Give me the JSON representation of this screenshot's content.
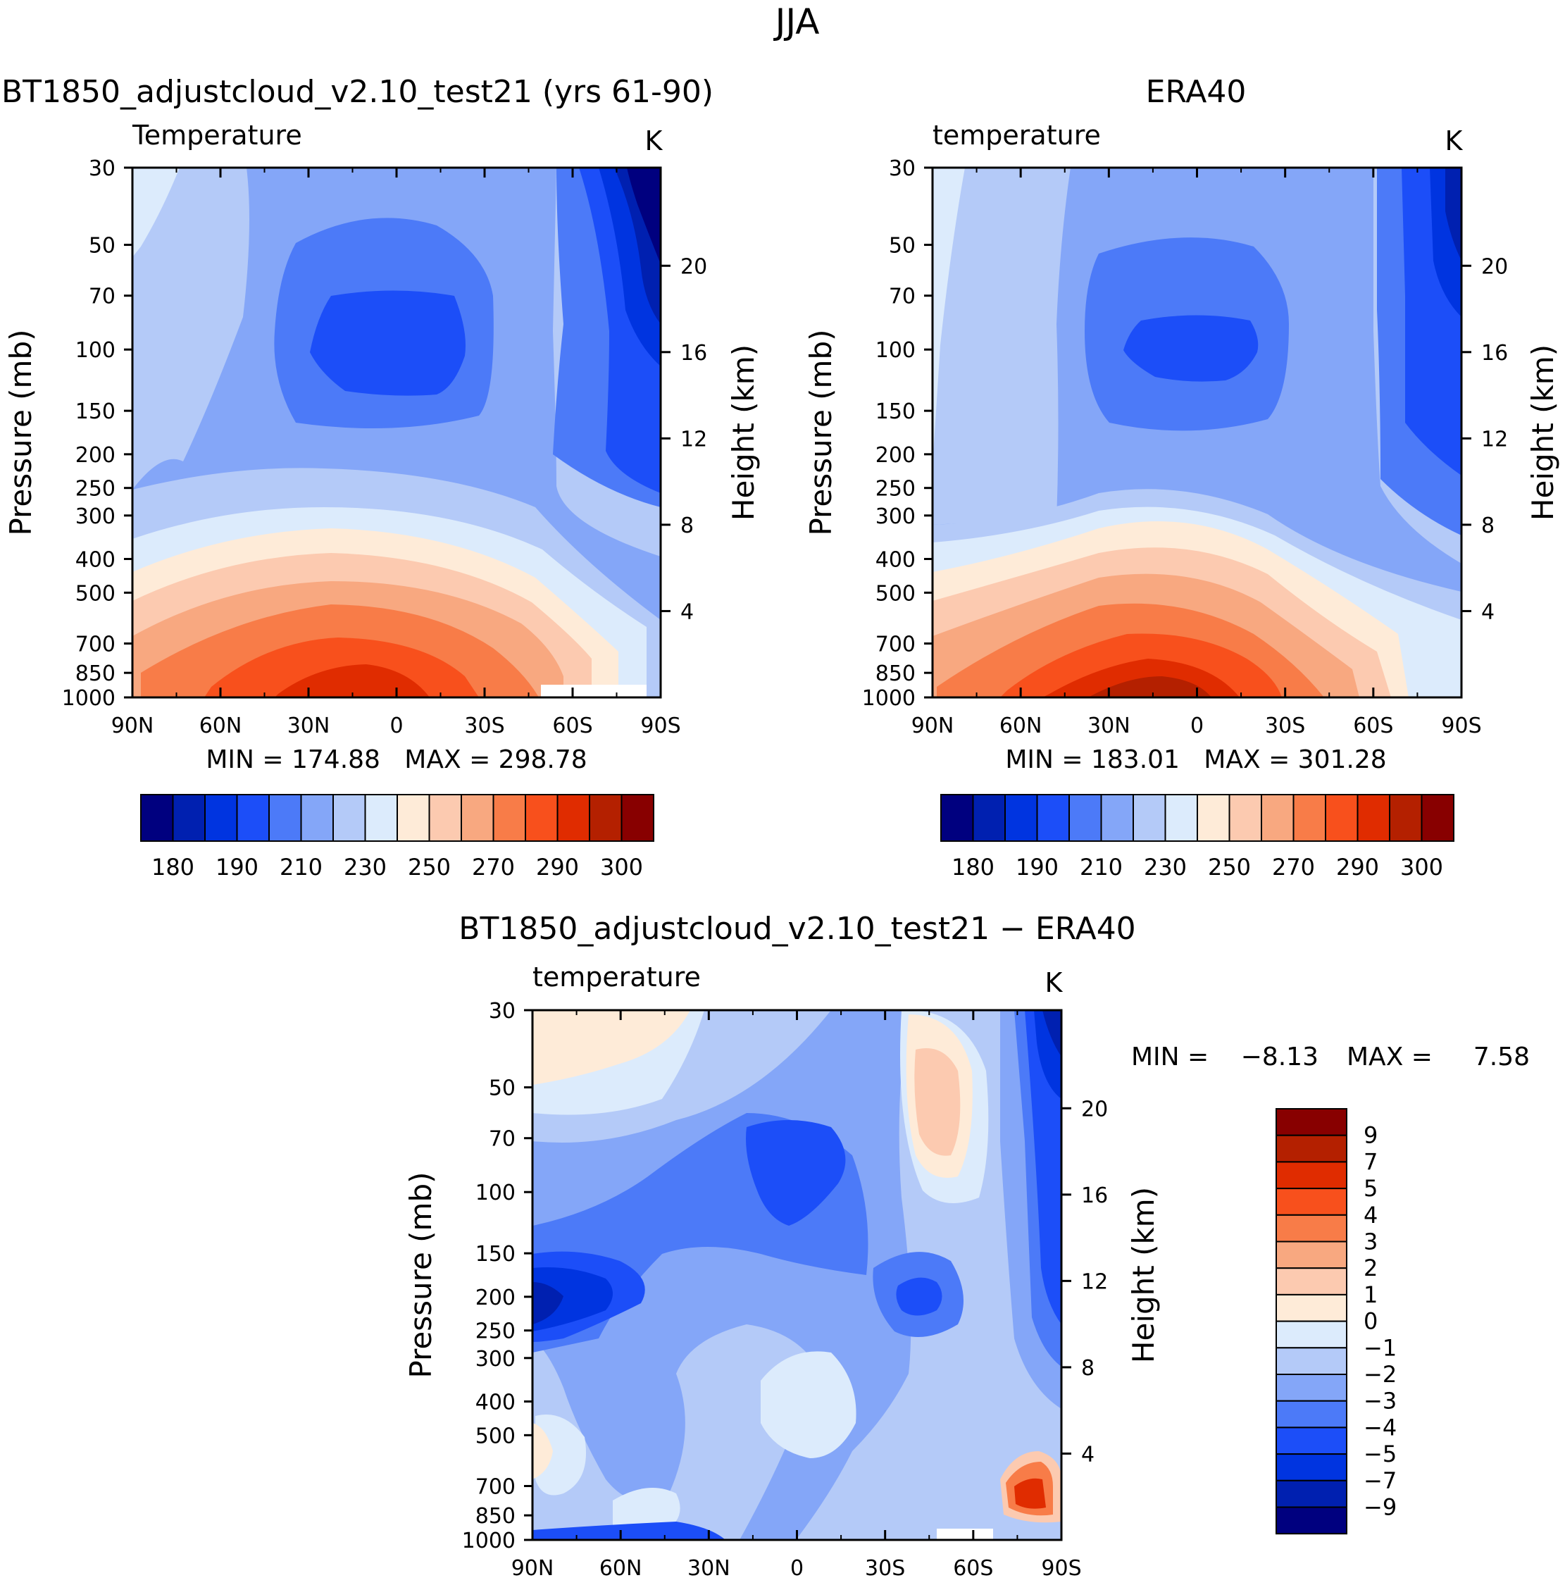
{
  "page": {
    "title": "JJA"
  },
  "colors": {
    "abs_scale": [
      "#00007f",
      "#0020b0",
      "#0034e0",
      "#1c4ef8",
      "#4c7af8",
      "#84a6f8",
      "#b4caf8",
      "#dcebfc",
      "#feebd8",
      "#fccab0",
      "#f8a880",
      "#f87c48",
      "#f8501c",
      "#e02c00",
      "#b42000",
      "#880000"
    ],
    "diff_scale": [
      "#00007f",
      "#0020b0",
      "#0034e0",
      "#1c4ef8",
      "#4c7af8",
      "#84a6f8",
      "#b4caf8",
      "#dcebfc",
      "#feebd8",
      "#fccab0",
      "#f8a880",
      "#f87c48",
      "#f8501c",
      "#e02c00",
      "#b42000",
      "#880000"
    ]
  },
  "axes_common": {
    "pressure_ticks": [
      "30",
      "50",
      "70",
      "100",
      "150",
      "200",
      "250",
      "300",
      "400",
      "500",
      "700",
      "850",
      "1000"
    ],
    "height_ticks": [
      "20",
      "16",
      "12",
      "8",
      "4"
    ],
    "lat_ticks": [
      "90N",
      "60N",
      "30N",
      "0",
      "30S",
      "60S",
      "90S"
    ],
    "ylabel_left": "Pressure (mb)",
    "ylabel_right": "Height (km)"
  },
  "panels": {
    "model": {
      "title": "BT1850_adjustcloud_v2.10_test21 (yrs 61-90)",
      "var_label": "Temperature",
      "units": "K",
      "stats": "MIN = 174.88   MAX = 298.78",
      "colorbar_labels": [
        "180",
        "190",
        "210",
        "230",
        "250",
        "270",
        "290",
        "300"
      ]
    },
    "obs": {
      "title": "ERA40",
      "var_label": "temperature",
      "units": "K",
      "stats": "MIN = 183.01   MAX = 301.28",
      "colorbar_labels": [
        "180",
        "190",
        "210",
        "230",
        "250",
        "270",
        "290",
        "300"
      ]
    },
    "diff": {
      "title": "BT1850_adjustcloud_v2.10_test21 − ERA40",
      "var_label": "temperature",
      "units": "K",
      "stats_min_label": "MIN =",
      "stats_min_value": "−8.13",
      "stats_max_label": "MAX =",
      "stats_max_value": "7.58",
      "colorbar_labels": [
        "9",
        "7",
        "5",
        "4",
        "3",
        "2",
        "1",
        "0",
        "−1",
        "−2",
        "−3",
        "−4",
        "−5",
        "−7",
        "−9"
      ]
    }
  },
  "chart_data": [
    {
      "type": "heatmap",
      "title": "BT1850_adjustcloud_v2.10_test21 (yrs 61-90)",
      "variable": "Temperature",
      "units": "K",
      "x": [
        "90N",
        "60N",
        "30N",
        "0",
        "30S",
        "60S",
        "90S"
      ],
      "y_pressure_mb": [
        30,
        50,
        70,
        100,
        150,
        200,
        250,
        300,
        400,
        500,
        700,
        850,
        1000
      ],
      "min": 174.88,
      "max": 298.78,
      "contour_levels": [
        180,
        185,
        190,
        200,
        210,
        220,
        230,
        240,
        250,
        260,
        270,
        280,
        290,
        295,
        300
      ]
    },
    {
      "type": "heatmap",
      "title": "ERA40",
      "variable": "temperature",
      "units": "K",
      "x": [
        "90N",
        "60N",
        "30N",
        "0",
        "30S",
        "60S",
        "90S"
      ],
      "y_pressure_mb": [
        30,
        50,
        70,
        100,
        150,
        200,
        250,
        300,
        400,
        500,
        700,
        850,
        1000
      ],
      "min": 183.01,
      "max": 301.28,
      "contour_levels": [
        180,
        185,
        190,
        200,
        210,
        220,
        230,
        240,
        250,
        260,
        270,
        280,
        290,
        295,
        300
      ]
    },
    {
      "type": "heatmap",
      "title": "BT1850_adjustcloud_v2.10_test21 − ERA40",
      "variable": "temperature",
      "units": "K",
      "x": [
        "90N",
        "60N",
        "30N",
        "0",
        "30S",
        "60S",
        "90S"
      ],
      "y_pressure_mb": [
        30,
        50,
        70,
        100,
        150,
        200,
        250,
        300,
        400,
        500,
        700,
        850,
        1000
      ],
      "min": -8.13,
      "max": 7.58,
      "contour_levels": [
        -9,
        -7,
        -5,
        -4,
        -3,
        -2,
        -1,
        0,
        1,
        2,
        3,
        4,
        5,
        7,
        9
      ]
    }
  ]
}
